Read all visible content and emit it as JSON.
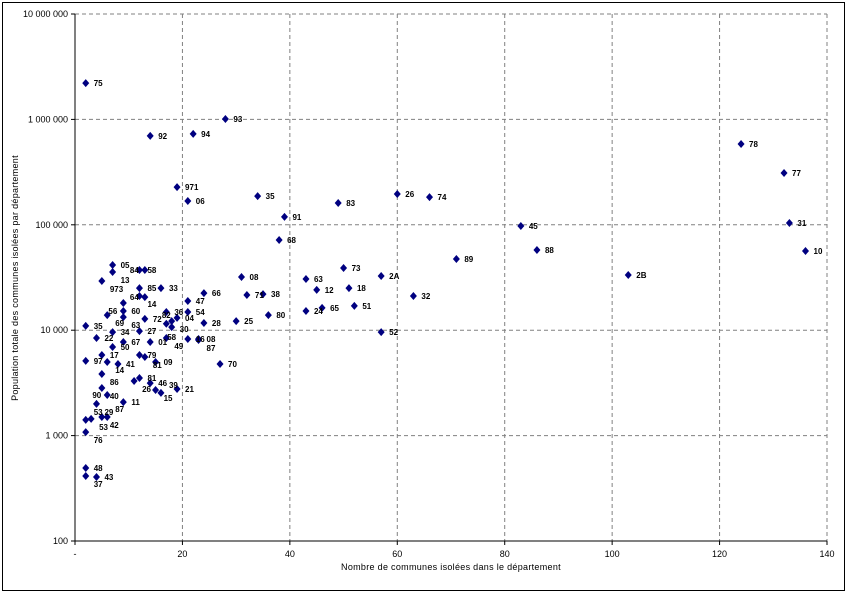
{
  "chart_data": {
    "type": "scatter",
    "xlabel": "Nombre de communes isolées dans le département",
    "ylabel": "Population totale des communes isolées par département",
    "xlim": [
      0,
      140
    ],
    "ylim": [
      100,
      10000000
    ],
    "y_scale": "log",
    "grid": true,
    "marker_color": "#000080",
    "x_ticks": [
      {
        "v": 0,
        "label": "-"
      },
      {
        "v": 20,
        "label": "20"
      },
      {
        "v": 40,
        "label": "40"
      },
      {
        "v": 60,
        "label": "60"
      },
      {
        "v": 80,
        "label": "80"
      },
      {
        "v": 100,
        "label": "100"
      },
      {
        "v": 120,
        "label": "120"
      },
      {
        "v": 140,
        "label": "140"
      }
    ],
    "y_ticks": [
      {
        "v": 100,
        "label": "100"
      },
      {
        "v": 1000,
        "label": "1 000"
      },
      {
        "v": 10000,
        "label": "10 000"
      },
      {
        "v": 100000,
        "label": "100 000"
      },
      {
        "v": 1000000,
        "label": "1 000 000"
      },
      {
        "v": 10000000,
        "label": "10 000 000"
      }
    ],
    "points": [
      {
        "label": "75",
        "x": 2,
        "y": 2210000
      },
      {
        "label": "93",
        "x": 28,
        "y": 1010000
      },
      {
        "label": "94",
        "x": 22,
        "y": 728000
      },
      {
        "label": "92",
        "x": 14,
        "y": 697000
      },
      {
        "label": "78",
        "x": 124,
        "y": 585000
      },
      {
        "label": "77",
        "x": 132,
        "y": 310000
      },
      {
        "label": "971",
        "x": 19,
        "y": 228000
      },
      {
        "label": "26",
        "x": 60,
        "y": 196000
      },
      {
        "label": "35",
        "x": 34,
        "y": 187000
      },
      {
        "label": "74",
        "x": 66,
        "y": 183000
      },
      {
        "label": "06",
        "x": 21,
        "y": 168000
      },
      {
        "label": "83",
        "x": 49,
        "y": 161000
      },
      {
        "label": "91",
        "x": 39,
        "y": 119000
      },
      {
        "label": "31",
        "x": 133,
        "y": 104000
      },
      {
        "label": "45",
        "x": 83,
        "y": 97500
      },
      {
        "label": "68",
        "x": 38,
        "y": 71800
      },
      {
        "label": "88",
        "x": 86,
        "y": 57700
      },
      {
        "label": "10",
        "x": 136,
        "y": 56400
      },
      {
        "label": "89",
        "x": 71,
        "y": 47400
      },
      {
        "label": "05",
        "x": 7,
        "y": 41600
      },
      {
        "label": "73",
        "x": 50,
        "y": 38900
      },
      {
        "label": "58",
        "x": 12,
        "y": 37300
      },
      {
        "label": "84",
        "x": 13,
        "y": 37300
      },
      {
        "label": "13",
        "x": 7,
        "y": 35700
      },
      {
        "label": "2B",
        "x": 103,
        "y": 33400
      },
      {
        "label": "2A",
        "x": 57,
        "y": 32700
      },
      {
        "label": "08",
        "x": 31,
        "y": 32000
      },
      {
        "label": "63",
        "x": 43,
        "y": 30600
      },
      {
        "label": "973",
        "x": 5,
        "y": 29300
      },
      {
        "label": "85",
        "x": 12,
        "y": 25100
      },
      {
        "label": "33",
        "x": 16,
        "y": 25100
      },
      {
        "label": "18",
        "x": 51,
        "y": 25100
      },
      {
        "label": "12",
        "x": 45,
        "y": 24100
      },
      {
        "label": "66",
        "x": 24,
        "y": 22500
      },
      {
        "label": "38",
        "x": 35,
        "y": 22000
      },
      {
        "label": "71",
        "x": 32,
        "y": 21600
      },
      {
        "label": "14",
        "x": 12,
        "y": 21100
      },
      {
        "label": "32",
        "x": 63,
        "y": 21100
      },
      {
        "label": "64",
        "x": 13,
        "y": 20600
      },
      {
        "label": "47",
        "x": 21,
        "y": 18900
      },
      {
        "label": "60",
        "x": 9,
        "y": 18100
      },
      {
        "label": "51",
        "x": 52,
        "y": 17000
      },
      {
        "label": "65",
        "x": 46,
        "y": 16300
      },
      {
        "label": "24",
        "x": 43,
        "y": 15200
      },
      {
        "label": "56",
        "x": 9,
        "y": 15200
      },
      {
        "label": "36",
        "x": 17,
        "y": 14900
      },
      {
        "label": "54",
        "x": 21,
        "y": 14900
      },
      {
        "label": "80",
        "x": 36,
        "y": 13900
      },
      {
        "label": "69",
        "x": 6,
        "y": 13900
      },
      {
        "label": "63",
        "x": 9,
        "y": 13300
      },
      {
        "label": "04",
        "x": 19,
        "y": 13100
      },
      {
        "label": "72",
        "x": 13,
        "y": 12800
      },
      {
        "label": "25",
        "x": 30,
        "y": 12200
      },
      {
        "label": "30",
        "x": 18,
        "y": 12200
      },
      {
        "label": "28",
        "x": 24,
        "y": 11700
      },
      {
        "label": "82",
        "x": 17,
        "y": 11500
      },
      {
        "label": "35",
        "x": 2,
        "y": 11000
      },
      {
        "label": "58",
        "x": 18,
        "y": 10700
      },
      {
        "label": "27",
        "x": 12,
        "y": 9800
      },
      {
        "label": "34",
        "x": 7,
        "y": 9600
      },
      {
        "label": "52",
        "x": 57,
        "y": 9600
      },
      {
        "label": "22",
        "x": 4,
        "y": 8430
      },
      {
        "label": "49",
        "x": 17,
        "y": 8430
      },
      {
        "label": "16",
        "x": 21,
        "y": 8250
      },
      {
        "label": "08",
        "x": 23,
        "y": 8250
      },
      {
        "label": "87",
        "x": 23,
        "y": 8070
      },
      {
        "label": "67",
        "x": 9,
        "y": 7730
      },
      {
        "label": "01",
        "x": 14,
        "y": 7730
      },
      {
        "label": "50",
        "x": 7,
        "y": 6930
      },
      {
        "label": "17",
        "x": 5,
        "y": 5820
      },
      {
        "label": "79",
        "x": 12,
        "y": 5820
      },
      {
        "label": "81",
        "x": 13,
        "y": 5570
      },
      {
        "label": "97",
        "x": 2,
        "y": 5110
      },
      {
        "label": "14",
        "x": 6,
        "y": 4990
      },
      {
        "label": "09",
        "x": 15,
        "y": 4990
      },
      {
        "label": "41",
        "x": 8,
        "y": 4780
      },
      {
        "label": "70",
        "x": 27,
        "y": 4780
      },
      {
        "label": "86",
        "x": 5,
        "y": 3840
      },
      {
        "label": "81",
        "x": 12,
        "y": 3520
      },
      {
        "label": "26",
        "x": 11,
        "y": 3300
      },
      {
        "label": "46",
        "x": 14,
        "y": 3150
      },
      {
        "label": "40",
        "x": 5,
        "y": 2830
      },
      {
        "label": "21",
        "x": 19,
        "y": 2770
      },
      {
        "label": "15",
        "x": 15,
        "y": 2710
      },
      {
        "label": "39",
        "x": 16,
        "y": 2540
      },
      {
        "label": "90",
        "x": 6,
        "y": 2430
      },
      {
        "label": "11",
        "x": 9,
        "y": 2080
      },
      {
        "label": "29",
        "x": 4,
        "y": 2000
      },
      {
        "label": "42",
        "x": 5,
        "y": 1500
      },
      {
        "label": "87",
        "x": 6,
        "y": 1500
      },
      {
        "label": "53",
        "x": 3,
        "y": 1440
      },
      {
        "label": "53",
        "x": 2,
        "y": 1410
      },
      {
        "label": "76",
        "x": 2,
        "y": 1080
      },
      {
        "label": "48",
        "x": 2,
        "y": 493
      },
      {
        "label": "37",
        "x": 2,
        "y": 414
      },
      {
        "label": "43",
        "x": 4,
        "y": 405
      }
    ]
  }
}
